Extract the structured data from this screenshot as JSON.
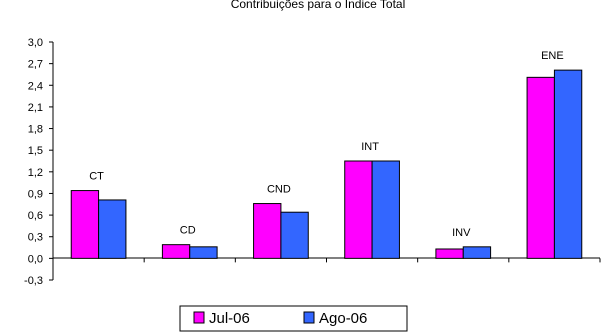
{
  "chart_data": {
    "type": "bar",
    "title": "Contribuições para o Índice Total",
    "categories": [
      "CT",
      "CD",
      "CND",
      "INT",
      "INV",
      "ENE"
    ],
    "series": [
      {
        "name": "Jul-06",
        "values": [
          0.94,
          0.19,
          0.76,
          1.35,
          0.13,
          2.51
        ],
        "color": "#ff00ff"
      },
      {
        "name": "Ago-06",
        "values": [
          0.81,
          0.16,
          0.64,
          1.35,
          0.16,
          2.61
        ],
        "color": "#3366ff"
      }
    ],
    "ylim": [
      -0.3,
      3.0
    ],
    "yticks": [
      "3,0",
      "2,7",
      "2,4",
      "2,1",
      "1,8",
      "1,5",
      "1,2",
      "0,9",
      "0,6",
      "0,3",
      "0,0",
      "-0,3"
    ],
    "ytick_values": [
      3.0,
      2.7,
      2.4,
      2.1,
      1.8,
      1.5,
      1.2,
      0.9,
      0.6,
      0.3,
      0.0,
      -0.3
    ],
    "legend_position": "bottom",
    "grid": false
  }
}
